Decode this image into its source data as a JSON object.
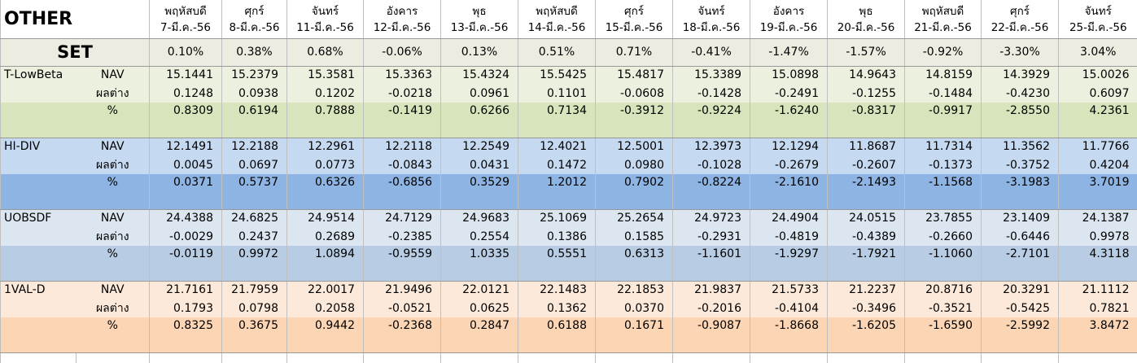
{
  "header": {
    "title": "OTHER",
    "set_label": "SET"
  },
  "columns": [
    {
      "day": "พฤหัสบดี",
      "date": "7-มี.ค.-56"
    },
    {
      "day": "ศุกร์",
      "date": "8-มี.ค.-56"
    },
    {
      "day": "จันทร์",
      "date": "11-มี.ค.-56"
    },
    {
      "day": "อังคาร",
      "date": "12-มี.ค.-56"
    },
    {
      "day": "พุธ",
      "date": "13-มี.ค.-56"
    },
    {
      "day": "พฤหัสบดี",
      "date": "14-มี.ค.-56"
    },
    {
      "day": "ศุกร์",
      "date": "15-มี.ค.-56"
    },
    {
      "day": "จันทร์",
      "date": "18-มี.ค.-56"
    },
    {
      "day": "อังคาร",
      "date": "19-มี.ค.-56"
    },
    {
      "day": "พุธ",
      "date": "20-มี.ค.-56"
    },
    {
      "day": "พฤหัสบดี",
      "date": "21-มี.ค.-56"
    },
    {
      "day": "ศุกร์",
      "date": "22-มี.ค.-56"
    },
    {
      "day": "จันทร์",
      "date": "25-มี.ค.-56"
    }
  ],
  "set_values": [
    "0.10%",
    "0.38%",
    "0.68%",
    "-0.06%",
    "0.13%",
    "0.51%",
    "0.71%",
    "-0.41%",
    "-1.47%",
    "-1.57%",
    "-0.92%",
    "-3.30%",
    "3.04%"
  ],
  "funds": [
    {
      "name": "T-LowBeta",
      "rows": [
        {
          "label": "NAV",
          "values": [
            "15.1441",
            "15.2379",
            "15.3581",
            "15.3363",
            "15.4324",
            "15.5425",
            "15.4817",
            "15.3389",
            "15.0898",
            "14.9643",
            "14.8159",
            "14.3929",
            "15.0026"
          ]
        },
        {
          "label": "ผลต่าง",
          "values": [
            "0.1248",
            "0.0938",
            "0.1202",
            "-0.0218",
            "0.0961",
            "0.1101",
            "-0.0608",
            "-0.1428",
            "-0.2491",
            "-0.1255",
            "-0.1484",
            "-0.4230",
            "0.6097"
          ]
        },
        {
          "label": "%",
          "values": [
            "0.8309",
            "0.6194",
            "0.7888",
            "-0.1419",
            "0.6266",
            "0.7134",
            "-0.3912",
            "-0.9224",
            "-1.6240",
            "-0.8317",
            "-0.9917",
            "-2.8550",
            "4.2361"
          ]
        }
      ]
    },
    {
      "name": "HI-DIV",
      "rows": [
        {
          "label": "NAV",
          "values": [
            "12.1491",
            "12.2188",
            "12.2961",
            "12.2118",
            "12.2549",
            "12.4021",
            "12.5001",
            "12.3973",
            "12.1294",
            "11.8687",
            "11.7314",
            "11.3562",
            "11.7766"
          ]
        },
        {
          "label": "ผลต่าง",
          "values": [
            "0.0045",
            "0.0697",
            "0.0773",
            "-0.0843",
            "0.0431",
            "0.1472",
            "0.0980",
            "-0.1028",
            "-0.2679",
            "-0.2607",
            "-0.1373",
            "-0.3752",
            "0.4204"
          ]
        },
        {
          "label": "%",
          "values": [
            "0.0371",
            "0.5737",
            "0.6326",
            "-0.6856",
            "0.3529",
            "1.2012",
            "0.7902",
            "-0.8224",
            "-2.1610",
            "-2.1493",
            "-1.1568",
            "-3.1983",
            "3.7019"
          ]
        }
      ]
    },
    {
      "name": "UOBSDF",
      "rows": [
        {
          "label": "NAV",
          "values": [
            "24.4388",
            "24.6825",
            "24.9514",
            "24.7129",
            "24.9683",
            "25.1069",
            "25.2654",
            "24.9723",
            "24.4904",
            "24.0515",
            "23.7855",
            "23.1409",
            "24.1387"
          ]
        },
        {
          "label": "ผลต่าง",
          "values": [
            "-0.0029",
            "0.2437",
            "0.2689",
            "-0.2385",
            "0.2554",
            "0.1386",
            "0.1585",
            "-0.2931",
            "-0.4819",
            "-0.4389",
            "-0.2660",
            "-0.6446",
            "0.9978"
          ]
        },
        {
          "label": "%",
          "values": [
            "-0.0119",
            "0.9972",
            "1.0894",
            "-0.9559",
            "1.0335",
            "0.5551",
            "0.6313",
            "-1.1601",
            "-1.9297",
            "-1.7921",
            "-1.1060",
            "-2.7101",
            "4.3118"
          ]
        }
      ]
    },
    {
      "name": "1VAL-D",
      "rows": [
        {
          "label": "NAV",
          "values": [
            "21.7161",
            "21.7959",
            "22.0017",
            "21.9496",
            "22.0121",
            "22.1483",
            "22.1853",
            "21.9837",
            "21.5733",
            "21.2237",
            "20.8716",
            "20.3291",
            "21.1112"
          ]
        },
        {
          "label": "ผลต่าง",
          "values": [
            "0.1793",
            "0.0798",
            "0.2058",
            "-0.0521",
            "0.0625",
            "0.1362",
            "0.0370",
            "-0.2016",
            "-0.4104",
            "-0.3496",
            "-0.3521",
            "-0.5425",
            "0.7821"
          ]
        },
        {
          "label": "%",
          "values": [
            "0.8325",
            "0.3675",
            "0.9442",
            "-0.2368",
            "0.2847",
            "0.6188",
            "0.1671",
            "-0.9087",
            "-1.8668",
            "-1.6205",
            "-1.6590",
            "-2.5992",
            "3.8472"
          ]
        }
      ]
    }
  ]
}
